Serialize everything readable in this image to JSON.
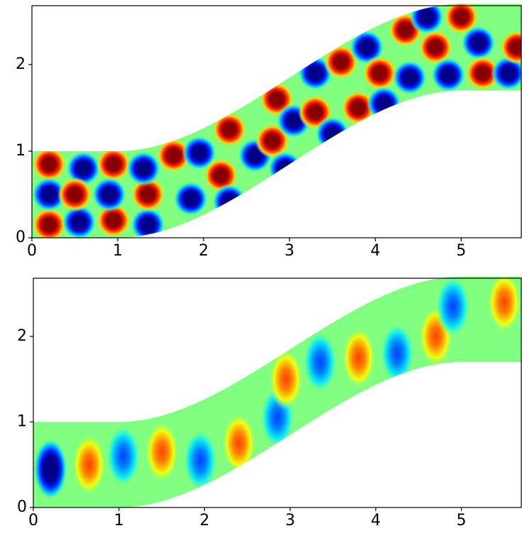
{
  "chart_data": [
    {
      "type": "field",
      "xlim": [
        0,
        5.7
      ],
      "ylim": [
        0,
        2.68
      ],
      "xticks": [
        0,
        1,
        2,
        3,
        4,
        5
      ],
      "yticks": [
        0,
        1,
        2
      ],
      "spots": [
        {
          "x": 0.2,
          "y": 0.85,
          "value": 1
        },
        {
          "x": 0.2,
          "y": 0.15,
          "value": 1
        },
        {
          "x": 0.2,
          "y": 0.5,
          "value": -1
        },
        {
          "x": 0.6,
          "y": 0.8,
          "value": -1
        },
        {
          "x": 0.55,
          "y": 0.18,
          "value": -1
        },
        {
          "x": 0.5,
          "y": 0.5,
          "value": 1
        },
        {
          "x": 0.95,
          "y": 0.85,
          "value": 1
        },
        {
          "x": 0.95,
          "y": 0.2,
          "value": 1
        },
        {
          "x": 0.9,
          "y": 0.5,
          "value": -1
        },
        {
          "x": 1.35,
          "y": 0.15,
          "value": -1
        },
        {
          "x": 1.35,
          "y": 0.5,
          "value": 1
        },
        {
          "x": 1.3,
          "y": 0.8,
          "value": -1
        },
        {
          "x": 1.65,
          "y": 0.95,
          "value": 1
        },
        {
          "x": 1.85,
          "y": 0.45,
          "value": -1
        },
        {
          "x": 1.95,
          "y": 0.98,
          "value": -1
        },
        {
          "x": 2.2,
          "y": 0.72,
          "value": 1
        },
        {
          "x": 2.3,
          "y": 1.25,
          "value": 1
        },
        {
          "x": 2.3,
          "y": 0.42,
          "value": -1
        },
        {
          "x": 2.6,
          "y": 0.95,
          "value": -1
        },
        {
          "x": 2.85,
          "y": 1.6,
          "value": 1
        },
        {
          "x": 2.8,
          "y": 1.12,
          "value": 1
        },
        {
          "x": 2.95,
          "y": 0.8,
          "value": -1
        },
        {
          "x": 3.05,
          "y": 1.35,
          "value": -1
        },
        {
          "x": 3.3,
          "y": 1.45,
          "value": 1
        },
        {
          "x": 3.3,
          "y": 1.9,
          "value": -1
        },
        {
          "x": 3.5,
          "y": 1.2,
          "value": -1
        },
        {
          "x": 3.6,
          "y": 2.03,
          "value": 1
        },
        {
          "x": 3.8,
          "y": 1.5,
          "value": 1
        },
        {
          "x": 3.9,
          "y": 2.2,
          "value": -1
        },
        {
          "x": 4.05,
          "y": 1.9,
          "value": 1
        },
        {
          "x": 4.1,
          "y": 1.55,
          "value": -1
        },
        {
          "x": 4.35,
          "y": 2.4,
          "value": 1
        },
        {
          "x": 4.4,
          "y": 1.85,
          "value": -1
        },
        {
          "x": 4.6,
          "y": 2.55,
          "value": -1
        },
        {
          "x": 4.7,
          "y": 2.2,
          "value": 1
        },
        {
          "x": 4.85,
          "y": 1.88,
          "value": -1
        },
        {
          "x": 5.0,
          "y": 2.55,
          "value": 1
        },
        {
          "x": 5.2,
          "y": 2.25,
          "value": -1
        },
        {
          "x": 5.25,
          "y": 1.9,
          "value": 1
        },
        {
          "x": 5.55,
          "y": 1.9,
          "value": -1
        },
        {
          "x": 5.65,
          "y": 2.2,
          "value": 1
        }
      ]
    },
    {
      "type": "field",
      "xlim": [
        0,
        5.7
      ],
      "ylim": [
        0,
        2.68
      ],
      "xticks": [
        0,
        1,
        2,
        3,
        4,
        5
      ],
      "yticks": [
        0,
        1,
        2
      ],
      "spots": [
        {
          "x": 0.2,
          "y": 0.45,
          "value": -1
        },
        {
          "x": 0.65,
          "y": 0.5,
          "value": 0.8
        },
        {
          "x": 1.05,
          "y": 0.6,
          "value": -0.8
        },
        {
          "x": 1.5,
          "y": 0.65,
          "value": 0.7
        },
        {
          "x": 1.95,
          "y": 0.55,
          "value": -0.8
        },
        {
          "x": 2.4,
          "y": 0.75,
          "value": 0.9
        },
        {
          "x": 2.85,
          "y": 1.05,
          "value": -0.7
        },
        {
          "x": 2.95,
          "y": 1.5,
          "value": 0.8
        },
        {
          "x": 3.35,
          "y": 1.7,
          "value": -0.8
        },
        {
          "x": 3.8,
          "y": 1.75,
          "value": 0.8
        },
        {
          "x": 4.25,
          "y": 1.8,
          "value": -0.8
        },
        {
          "x": 4.7,
          "y": 2.0,
          "value": 0.8
        },
        {
          "x": 4.9,
          "y": 2.35,
          "value": -0.6
        },
        {
          "x": 5.5,
          "y": 2.4,
          "value": 0.9
        }
      ]
    }
  ]
}
